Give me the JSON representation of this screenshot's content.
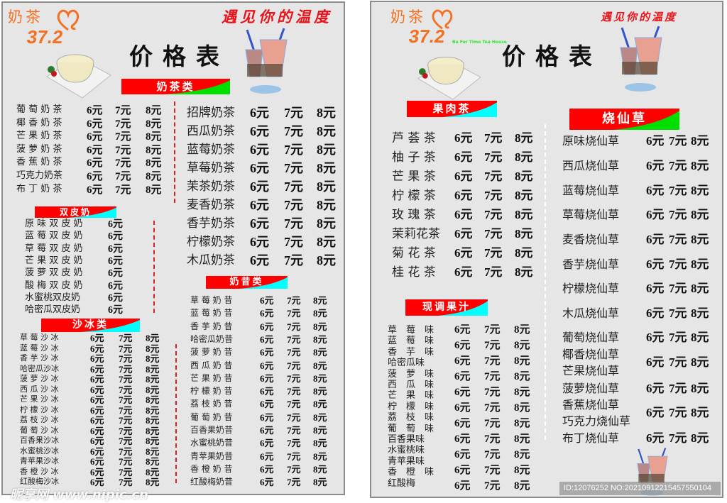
{
  "left": {
    "logo": {
      "brand": "奶茶",
      "number": "37.2"
    },
    "slogan": "遇见你的温度",
    "title": "价格表",
    "sections": {
      "milk_tea": {
        "title": "奶茶类",
        "items": [
          {
            "name": "葡 萄 奶 茶",
            "prices": [
              "6元",
              "7元",
              "8元"
            ]
          },
          {
            "name": "椰 香 奶 茶",
            "prices": [
              "6元",
              "7元",
              "8元"
            ]
          },
          {
            "name": "芒 果 奶 茶",
            "prices": [
              "6元",
              "7元",
              "8元"
            ]
          },
          {
            "name": "菠 萝 奶 茶",
            "prices": [
              "6元",
              "7元",
              "8元"
            ]
          },
          {
            "name": "香 蕉 奶 茶",
            "prices": [
              "6元",
              "7元",
              "8元"
            ]
          },
          {
            "name": "巧克力奶茶",
            "prices": [
              "6元",
              "7元",
              "8元"
            ]
          },
          {
            "name": "布 丁 奶 茶",
            "prices": [
              "6元",
              "7元",
              "8元"
            ]
          }
        ]
      },
      "milk_tea_2": {
        "items": [
          {
            "name": "招牌奶茶",
            "prices": [
              "6元",
              "7元",
              "8元"
            ]
          },
          {
            "name": "西瓜奶茶",
            "prices": [
              "6元",
              "7元",
              "8元"
            ]
          },
          {
            "name": "蓝莓奶茶",
            "prices": [
              "6元",
              "7元",
              "8元"
            ]
          },
          {
            "name": "草莓奶茶",
            "prices": [
              "6元",
              "7元",
              "8元"
            ]
          },
          {
            "name": "茉茶奶茶",
            "prices": [
              "6元",
              "7元",
              "8元"
            ]
          },
          {
            "name": "麦香奶茶",
            "prices": [
              "6元",
              "7元",
              "8元"
            ]
          },
          {
            "name": "香芋奶茶",
            "prices": [
              "6元",
              "7元",
              "8元"
            ]
          },
          {
            "name": "柠檬奶茶",
            "prices": [
              "6元",
              "7元",
              "8元"
            ]
          },
          {
            "name": "木瓜奶茶",
            "prices": [
              "6元",
              "7元",
              "8元"
            ]
          }
        ]
      },
      "double_skin_milk": {
        "title": "双皮奶",
        "items": [
          {
            "name": "原 味 双 皮 奶",
            "prices": [
              "6元"
            ]
          },
          {
            "name": "蓝 莓 双 皮 奶",
            "prices": [
              "6元"
            ]
          },
          {
            "name": "草 莓 双 皮 奶",
            "prices": [
              "6元"
            ]
          },
          {
            "name": "芒 果 双 皮 奶",
            "prices": [
              "6元"
            ]
          },
          {
            "name": "菠 萝 双 皮 奶",
            "prices": [
              "6元"
            ]
          },
          {
            "name": "酸 梅 双 皮 奶",
            "prices": [
              "6元"
            ]
          },
          {
            "name": "水蜜桃双皮奶",
            "prices": [
              "6元"
            ]
          },
          {
            "name": "哈密瓜双皮奶",
            "prices": [
              "6元"
            ]
          }
        ]
      },
      "smoothie": {
        "title": "沙冰类",
        "items": [
          {
            "name": "草 莓 沙 冰",
            "prices": [
              "6元",
              "7元",
              "8元"
            ]
          },
          {
            "name": "蓝 莓 沙 冰",
            "prices": [
              "6元",
              "7元",
              "8元"
            ]
          },
          {
            "name": "香 芋 沙 冰",
            "prices": [
              "6元",
              "7元",
              "8元"
            ]
          },
          {
            "name": "哈密瓜沙冰",
            "prices": [
              "6元",
              "7元",
              "8元"
            ]
          },
          {
            "name": "菠 萝 沙 冰",
            "prices": [
              "6元",
              "7元",
              "8元"
            ]
          },
          {
            "name": "西 瓜 沙 冰",
            "prices": [
              "6元",
              "7元",
              "8元"
            ]
          },
          {
            "name": "芒 果 沙 冰",
            "prices": [
              "6元",
              "7元",
              "8元"
            ]
          },
          {
            "name": "柠 檬 沙 冰",
            "prices": [
              "6元",
              "7元",
              "8元"
            ]
          },
          {
            "name": "荔 枝 沙 冰",
            "prices": [
              "6元",
              "7元",
              "8元"
            ]
          },
          {
            "name": "葡 萄 沙 冰",
            "prices": [
              "6元",
              "7元",
              "8元"
            ]
          },
          {
            "name": "百香果沙冰",
            "prices": [
              "6元",
              "7元",
              "8元"
            ]
          },
          {
            "name": "水蜜桃沙冰",
            "prices": [
              "6元",
              "7元",
              "8元"
            ]
          },
          {
            "name": "青苹果沙冰",
            "prices": [
              "6元",
              "7元",
              "8元"
            ]
          },
          {
            "name": "香 橙 沙 冰",
            "prices": [
              "6元",
              "7元",
              "8元"
            ]
          },
          {
            "name": "红酸梅沙冰",
            "prices": [
              "6元",
              "7元",
              "8元"
            ]
          }
        ]
      },
      "milkshake": {
        "title": "奶昔类",
        "items": [
          {
            "name": "草 莓 奶 昔",
            "prices": [
              "6元",
              "7元",
              "8元"
            ]
          },
          {
            "name": "蓝 莓 奶 昔",
            "prices": [
              "6元",
              "7元",
              "8元"
            ]
          },
          {
            "name": "香 芋 奶 昔",
            "prices": [
              "6元",
              "7元",
              "8元"
            ]
          },
          {
            "name": "哈密瓜奶昔",
            "prices": [
              "6元",
              "7元",
              "8元"
            ]
          },
          {
            "name": "菠 萝 奶 昔",
            "prices": [
              "6元",
              "7元",
              "8元"
            ]
          },
          {
            "name": "西 瓜 奶 昔",
            "prices": [
              "6元",
              "7元",
              "8元"
            ]
          },
          {
            "name": "芒 果 奶 昔",
            "prices": [
              "6元",
              "7元",
              "8元"
            ]
          },
          {
            "name": "柠 檬 奶 昔",
            "prices": [
              "6元",
              "7元",
              "8元"
            ]
          },
          {
            "name": "荔 枝 奶 昔",
            "prices": [
              "6元",
              "7元",
              "8元"
            ]
          },
          {
            "name": "葡 萄 奶 昔",
            "prices": [
              "6元",
              "7元",
              "8元"
            ]
          },
          {
            "name": "百香果奶昔",
            "prices": [
              "6元",
              "7元",
              "8元"
            ]
          },
          {
            "name": "水蜜桃奶昔",
            "prices": [
              "6元",
              "7元",
              "8元"
            ]
          },
          {
            "name": "青苹果奶昔",
            "prices": [
              "6元",
              "7元",
              "8元"
            ]
          },
          {
            "name": "香 橙 奶 昔",
            "prices": [
              "6元",
              "7元",
              "8元"
            ]
          },
          {
            "name": "红酸梅奶昔",
            "prices": [
              "6元",
              "7元",
              "8元"
            ]
          }
        ]
      }
    },
    "watermark": "昵享网 www.nipic.cn"
  },
  "right": {
    "logo": {
      "brand": "奶茶",
      "number": "37.2",
      "tagline": "Be For Time Tea House"
    },
    "slogan": "遇见你的温度",
    "title": "价格表",
    "sections": {
      "fruit_tea": {
        "title": "果肉茶",
        "items": [
          {
            "name": "芦 荟 茶",
            "prices": [
              "6元",
              "7元",
              "8元"
            ]
          },
          {
            "name": "柚 子 茶",
            "prices": [
              "6元",
              "7元",
              "8元"
            ]
          },
          {
            "name": "芒 果 茶",
            "prices": [
              "6元",
              "7元",
              "8元"
            ]
          },
          {
            "name": "柠 檬 茶",
            "prices": [
              "6元",
              "7元",
              "8元"
            ]
          },
          {
            "name": "玫 瑰 茶",
            "prices": [
              "6元",
              "7元",
              "8元"
            ]
          },
          {
            "name": "茉莉花茶",
            "prices": [
              "6元",
              "7元",
              "8元"
            ]
          },
          {
            "name": "菊 花 茶",
            "prices": [
              "6元",
              "7元",
              "8元"
            ]
          },
          {
            "name": "桂 花 茶",
            "prices": [
              "6元",
              "7元",
              "8元"
            ]
          }
        ]
      },
      "grass_jelly": {
        "title": "烧仙草",
        "items": [
          {
            "name": "原味烧仙草",
            "prices": [
              "6元",
              "7元",
              "8元"
            ]
          },
          {
            "name": "西瓜烧仙草",
            "prices": [
              "6元",
              "7元",
              "8元"
            ]
          },
          {
            "name": "蓝莓烧仙草",
            "prices": [
              "6元",
              "7元",
              "8元"
            ]
          },
          {
            "name": "草莓烧仙草",
            "prices": [
              "6元",
              "7元",
              "8元"
            ]
          },
          {
            "name": "麦香烧仙草",
            "prices": [
              "6元",
              "7元",
              "8元"
            ]
          },
          {
            "name": "香芋烧仙草",
            "prices": [
              "6元",
              "7元",
              "8元"
            ]
          },
          {
            "name": "柠檬烧仙草",
            "prices": [
              "6元",
              "7元",
              "8元"
            ]
          },
          {
            "name": "木瓜烧仙草",
            "prices": [
              "6元",
              "7元",
              "8元"
            ]
          },
          {
            "name": "葡萄烧仙草",
            "prices": [
              "6元",
              "7元",
              "8元"
            ]
          },
          {
            "name": "椰香烧仙草",
            "prices": [
              "6元",
              "7元",
              "8元"
            ]
          },
          {
            "name": "芒果烧仙草",
            "prices": [
              "6元",
              "7元",
              "8元"
            ]
          },
          {
            "name": "菠萝烧仙草",
            "prices": [
              "6元",
              "7元",
              "8元"
            ]
          },
          {
            "name": "香蕉烧仙草",
            "prices": [
              "6元",
              "7元",
              "8元"
            ]
          },
          {
            "name": "巧克力烧仙草",
            "prices": [
              "6元",
              "7元",
              "8元"
            ]
          },
          {
            "name": "布丁烧仙草",
            "prices": [
              "6元",
              "7元",
              "8元"
            ]
          }
        ]
      },
      "fresh_juice": {
        "title": "现调果汁",
        "items": [
          {
            "name": "草　莓　味",
            "prices": [
              "6元",
              "7元",
              "8元"
            ]
          },
          {
            "name": "蓝　莓　味",
            "prices": [
              "6元",
              "7元",
              "8元"
            ]
          },
          {
            "name": "香　芋　味",
            "prices": [
              "6元",
              "7元",
              "8元"
            ]
          },
          {
            "name": "哈密瓜味",
            "prices": [
              "6元",
              "7元",
              "8元"
            ]
          },
          {
            "name": "菠　萝　味",
            "prices": [
              "6元",
              "7元",
              "8元"
            ]
          },
          {
            "name": "西　瓜　味",
            "prices": [
              "6元",
              "7元",
              "8元"
            ]
          },
          {
            "name": "芒　果　味",
            "prices": [
              "6元",
              "7元",
              "8元"
            ]
          },
          {
            "name": "柠　檬　味",
            "prices": [
              "6元",
              "7元",
              "8元"
            ]
          },
          {
            "name": "荔　枝　味",
            "prices": [
              "6元",
              "7元",
              "8元"
            ]
          },
          {
            "name": "葡　萄　味",
            "prices": [
              "6元",
              "7元",
              "8元"
            ]
          },
          {
            "name": "百香果味",
            "prices": [
              "6元",
              "7元",
              "8元"
            ]
          },
          {
            "name": "水蜜桃味",
            "prices": [
              "6元",
              "7元",
              "8元"
            ]
          },
          {
            "name": "青苹果味",
            "prices": [
              "6元",
              "7元",
              "8元"
            ]
          },
          {
            "name": "香　橙　味",
            "prices": [
              "6元",
              "7元",
              "8元"
            ]
          },
          {
            "name": "红酸梅",
            "prices": [
              "6元",
              "7元",
              "8元"
            ]
          }
        ]
      }
    },
    "id_bar": "ID:12076252 NO:20210912215457550104"
  },
  "colors": {
    "brand_orange": "#f37021",
    "banner_red": "#ff0000",
    "banner_green": "#00e000",
    "banner_cyan": "#00ffff",
    "slogan_red": "#e8141a",
    "panel_bg": "#e6e6e6"
  }
}
